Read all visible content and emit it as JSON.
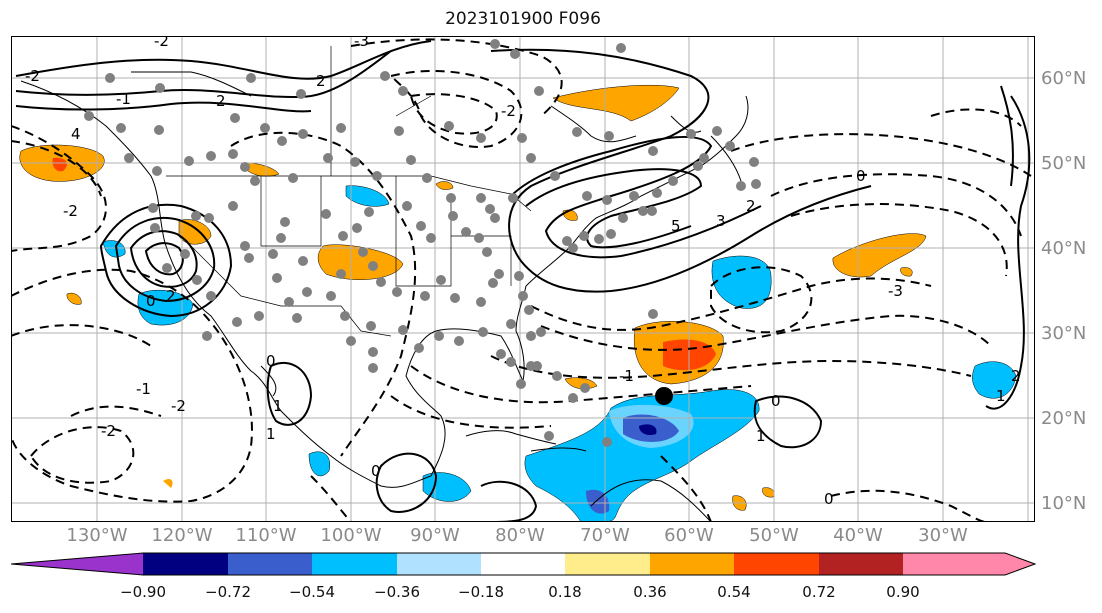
{
  "title": "2023101900 F096",
  "map": {
    "lat_labels": [
      "60°N",
      "50°N",
      "40°N",
      "30°N",
      "20°N",
      "10°N"
    ],
    "lon_labels": [
      "130°W",
      "120°W",
      "110°W",
      "100°W",
      "90°W",
      "80°W",
      "70°W",
      "60°W",
      "50°W",
      "40°W",
      "30°W"
    ],
    "contour_labels": [
      "-2",
      "-3",
      "2",
      "-2",
      "-1",
      "2",
      "4",
      "-2",
      "0",
      "2",
      "1",
      "0",
      "-1",
      "1",
      "-2",
      "-2",
      "0",
      "5",
      "3",
      "2",
      "0",
      "-3",
      "-1",
      "1",
      "0",
      "-2",
      "0",
      "1",
      "2"
    ],
    "marker_color": "#000000",
    "station_dot_color": "#808080",
    "land_line_color": "#000000",
    "contour_color": "#000000"
  },
  "colorbar": {
    "ticks": [
      "−0.90",
      "−0.72",
      "−0.54",
      "−0.36",
      "−0.18",
      "0.18",
      "0.36",
      "0.54",
      "0.72",
      "0.90"
    ],
    "colors": [
      "#9933cc",
      "#000080",
      "#3a5fcd",
      "#00bfff",
      "#b0e2ff",
      "#ffffff",
      "#ffec8b",
      "#ffa500",
      "#ff4500",
      "#b22222",
      "#ff88aa"
    ]
  }
}
